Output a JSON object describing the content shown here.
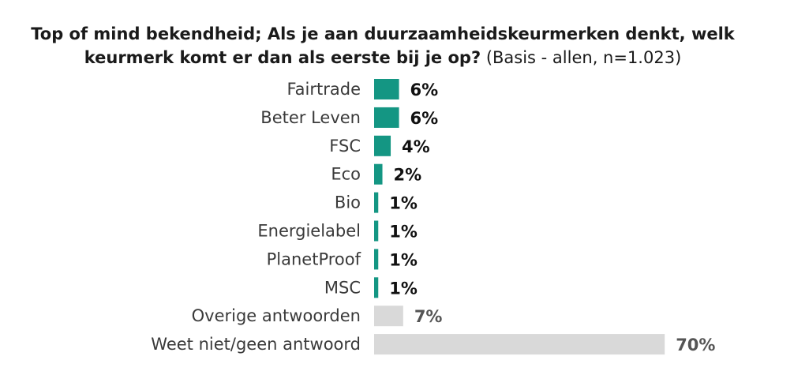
{
  "colors": {
    "accent": "#149683",
    "other": "#d9d9d9",
    "value_dark": "#111111",
    "value_gray": "#555555"
  },
  "chart_data": {
    "type": "bar",
    "orientation": "horizontal",
    "title_bold": "Top of mind bekendheid; Als je aan duurzaamheidskeurmerken denkt, welk keurmerk komt er dan als eerste bij je op?",
    "title_normal": "(Basis - allen, n=1.023)",
    "categories": [
      "Fairtrade",
      "Beter Leven",
      "FSC",
      "Eco",
      "Bio",
      "Energielabel",
      "PlanetProof",
      "MSC",
      "Overige antwoorden",
      "Weet niet/geen antwoord"
    ],
    "values": [
      6,
      6,
      4,
      2,
      1,
      1,
      1,
      1,
      7,
      70
    ],
    "value_labels": [
      "6%",
      "6%",
      "4%",
      "2%",
      "1%",
      "1%",
      "1%",
      "1%",
      "7%",
      "70%"
    ],
    "bar_colors": [
      "#149683",
      "#149683",
      "#149683",
      "#149683",
      "#149683",
      "#149683",
      "#149683",
      "#149683",
      "#d9d9d9",
      "#d9d9d9"
    ],
    "unit": "%",
    "xlim": [
      0,
      70
    ],
    "grid": false,
    "legend": "none"
  }
}
